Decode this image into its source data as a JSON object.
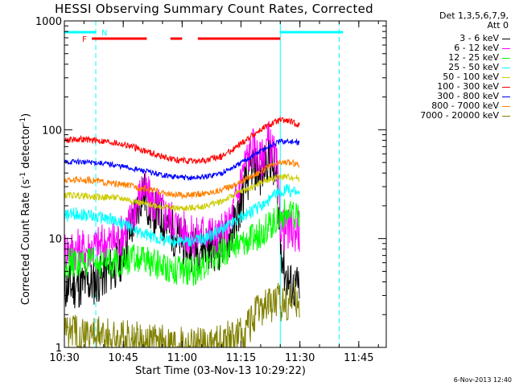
{
  "title": "HESSI Observing Summary Count Rates, Corrected",
  "legend_header": [
    "Det 1,3,5,6,7,9,",
    "Att 0"
  ],
  "timestamp": "6-Nov-2013 12:40",
  "flags": {
    "N": "N",
    "F": "F"
  },
  "colors": {
    "axis": "#000000",
    "flag_cyan": "#00ffff",
    "flag_red": "#ff0000"
  },
  "chart_data": {
    "type": "line",
    "title": "HESSI Observing Summary Count Rates, Corrected",
    "xlabel": "Start Time (03-Nov-13 10:29:22)",
    "ylabel": "Corrected Count Rate (s⁻¹ detector⁻¹)",
    "ylabel_parts": [
      "Corrected Count Rate (s",
      "-1",
      " detector",
      "-1",
      ")"
    ],
    "xlim": [
      "10:30",
      "11:52"
    ],
    "ylim": [
      1,
      1000
    ],
    "yscale": "log",
    "x_ticks": [
      "10:30",
      "10:45",
      "11:00",
      "11:15",
      "11:30",
      "11:45"
    ],
    "y_ticks": [
      {
        "value": 1,
        "label": "1"
      },
      {
        "value": 10,
        "label": "10"
      },
      {
        "value": 100,
        "label": "100"
      },
      {
        "value": 1000,
        "label": "1000"
      }
    ],
    "data_window": [
      "10:30",
      "11:30"
    ],
    "night_gap": [
      "10:30",
      "10:39"
    ],
    "saa_gap": [
      "11:25",
      "11:28"
    ],
    "series": [
      {
        "name": "3 - 6 keV",
        "color": "#000000",
        "x": [
          "10:30",
          "10:35",
          "10:38",
          "10:44",
          "10:47",
          "10:50",
          "10:52",
          "10:55",
          "10:59",
          "11:03",
          "11:06",
          "11:09",
          "11:12",
          "11:14",
          "11:16",
          "11:18",
          "11:20",
          "11:22",
          "11:24",
          "11:25",
          "11:26",
          "11:28",
          "11:30"
        ],
        "y": [
          3.5,
          3.8,
          4,
          6,
          12,
          28,
          18,
          15,
          10,
          8,
          9,
          8,
          10,
          15,
          30,
          48,
          38,
          60,
          35,
          10,
          5,
          3.5,
          3.5
        ]
      },
      {
        "name": "6 - 12 keV",
        "color": "#ff00ff",
        "x": [
          "10:30",
          "10:35",
          "10:38",
          "10:44",
          "10:47",
          "10:50",
          "10:52",
          "10:55",
          "10:59",
          "11:03",
          "11:06",
          "11:09",
          "11:12",
          "11:14",
          "11:16",
          "11:18",
          "11:20",
          "11:22",
          "11:24",
          "11:25",
          "11:26",
          "11:28",
          "11:30"
        ],
        "y": [
          8,
          8,
          8.5,
          10,
          15,
          30,
          22,
          18,
          13,
          10,
          12,
          10,
          13,
          25,
          50,
          70,
          50,
          80,
          50,
          14,
          12,
          12,
          12
        ]
      },
      {
        "name": "12 - 25 keV",
        "color": "#00ff00",
        "x": [
          "10:30",
          "10:38",
          "10:44",
          "10:47",
          "10:52",
          "10:56",
          "11:00",
          "11:03",
          "11:06",
          "11:09",
          "11:12",
          "11:15",
          "11:18",
          "11:21",
          "11:23",
          "11:25",
          "11:26",
          "11:28",
          "11:30"
        ],
        "y": [
          6,
          6,
          6,
          6.5,
          6,
          5.5,
          5,
          5,
          6,
          7,
          8,
          9,
          10,
          12,
          14,
          16,
          17,
          16,
          15
        ]
      },
      {
        "name": "25 - 50 keV",
        "color": "#00ffff",
        "x": [
          "10:30",
          "10:33",
          "10:38",
          "10:42",
          "10:46",
          "10:50",
          "10:54",
          "10:58",
          "11:02",
          "11:06",
          "11:10",
          "11:14",
          "11:18",
          "11:22",
          "11:25",
          "11:27",
          "11:30"
        ],
        "y": [
          16,
          17,
          16,
          15,
          13,
          11,
          10,
          9.5,
          9.5,
          10,
          12,
          15,
          18,
          22,
          27,
          28,
          26
        ]
      },
      {
        "name": "50 - 100 keV",
        "color": "#cccc00",
        "x": [
          "10:30",
          "10:33",
          "10:38",
          "10:42",
          "10:46",
          "10:50",
          "10:54",
          "10:58",
          "11:02",
          "11:06",
          "11:10",
          "11:14",
          "11:18",
          "11:22",
          "11:25",
          "11:27",
          "11:30"
        ],
        "y": [
          25,
          25,
          24,
          24,
          23,
          21,
          20,
          19,
          19,
          20,
          22,
          26,
          30,
          35,
          37,
          37,
          36
        ]
      },
      {
        "name": "100 - 300 keV",
        "color": "#ff0000",
        "x": [
          "10:30",
          "10:33",
          "10:38",
          "10:42",
          "10:46",
          "10:50",
          "10:54",
          "10:58",
          "11:02",
          "11:06",
          "11:10",
          "11:14",
          "11:18",
          "11:22",
          "11:25",
          "11:27",
          "11:30"
        ],
        "y": [
          80,
          82,
          80,
          77,
          72,
          65,
          58,
          53,
          51,
          52,
          57,
          70,
          90,
          110,
          122,
          120,
          110
        ]
      },
      {
        "name": "300 - 800 keV",
        "color": "#0000ff",
        "x": [
          "10:30",
          "10:33",
          "10:38",
          "10:42",
          "10:46",
          "10:50",
          "10:54",
          "10:58",
          "11:02",
          "11:06",
          "11:10",
          "11:14",
          "11:18",
          "11:22",
          "11:25",
          "11:27",
          "11:30"
        ],
        "y": [
          50,
          51,
          50,
          48,
          45,
          42,
          39,
          37,
          36,
          37,
          40,
          47,
          58,
          70,
          78,
          78,
          76
        ]
      },
      {
        "name": "800 - 7000 keV",
        "color": "#ff8000",
        "x": [
          "10:30",
          "10:33",
          "10:38",
          "10:42",
          "10:46",
          "10:50",
          "10:54",
          "10:58",
          "11:02",
          "11:06",
          "11:10",
          "11:14",
          "11:18",
          "11:22",
          "11:25",
          "11:27",
          "11:30"
        ],
        "y": [
          34,
          35,
          34,
          32,
          31,
          29,
          27,
          25,
          25,
          26,
          28,
          32,
          38,
          45,
          50,
          50,
          48
        ]
      },
      {
        "name": "7000 - 20000 keV",
        "color": "#808000",
        "x": [
          "10:30",
          "10:38",
          "10:45",
          "10:52",
          "11:00",
          "11:08",
          "11:15",
          "11:18",
          "11:20",
          "11:22",
          "11:24",
          "11:26",
          "11:28",
          "11:30"
        ],
        "y": [
          1.5,
          1.3,
          1.2,
          1.1,
          1.05,
          1.05,
          1.3,
          1.8,
          2.2,
          2.5,
          2.6,
          2.6,
          2.8,
          2.8
        ]
      }
    ],
    "flag_bars": [
      {
        "label": "N",
        "color": "#00ffff",
        "segments": [
          [
            "10:30",
            "10:38"
          ],
          [
            "11:25",
            "11:41"
          ]
        ]
      },
      {
        "label": "F",
        "color": "#ff0000",
        "segments": [
          [
            "10:37",
            "10:51"
          ],
          [
            "10:57",
            "11:00"
          ],
          [
            "11:04",
            "11:25"
          ]
        ]
      }
    ],
    "vlines": [
      {
        "x": "10:38",
        "color": "#00ffff",
        "dash": true
      },
      {
        "x": "11:25",
        "color": "#00ffff",
        "dash": false
      },
      {
        "x": "11:40",
        "color": "#00ffff",
        "dash": true
      }
    ],
    "grid": false,
    "legend_position": "right"
  }
}
